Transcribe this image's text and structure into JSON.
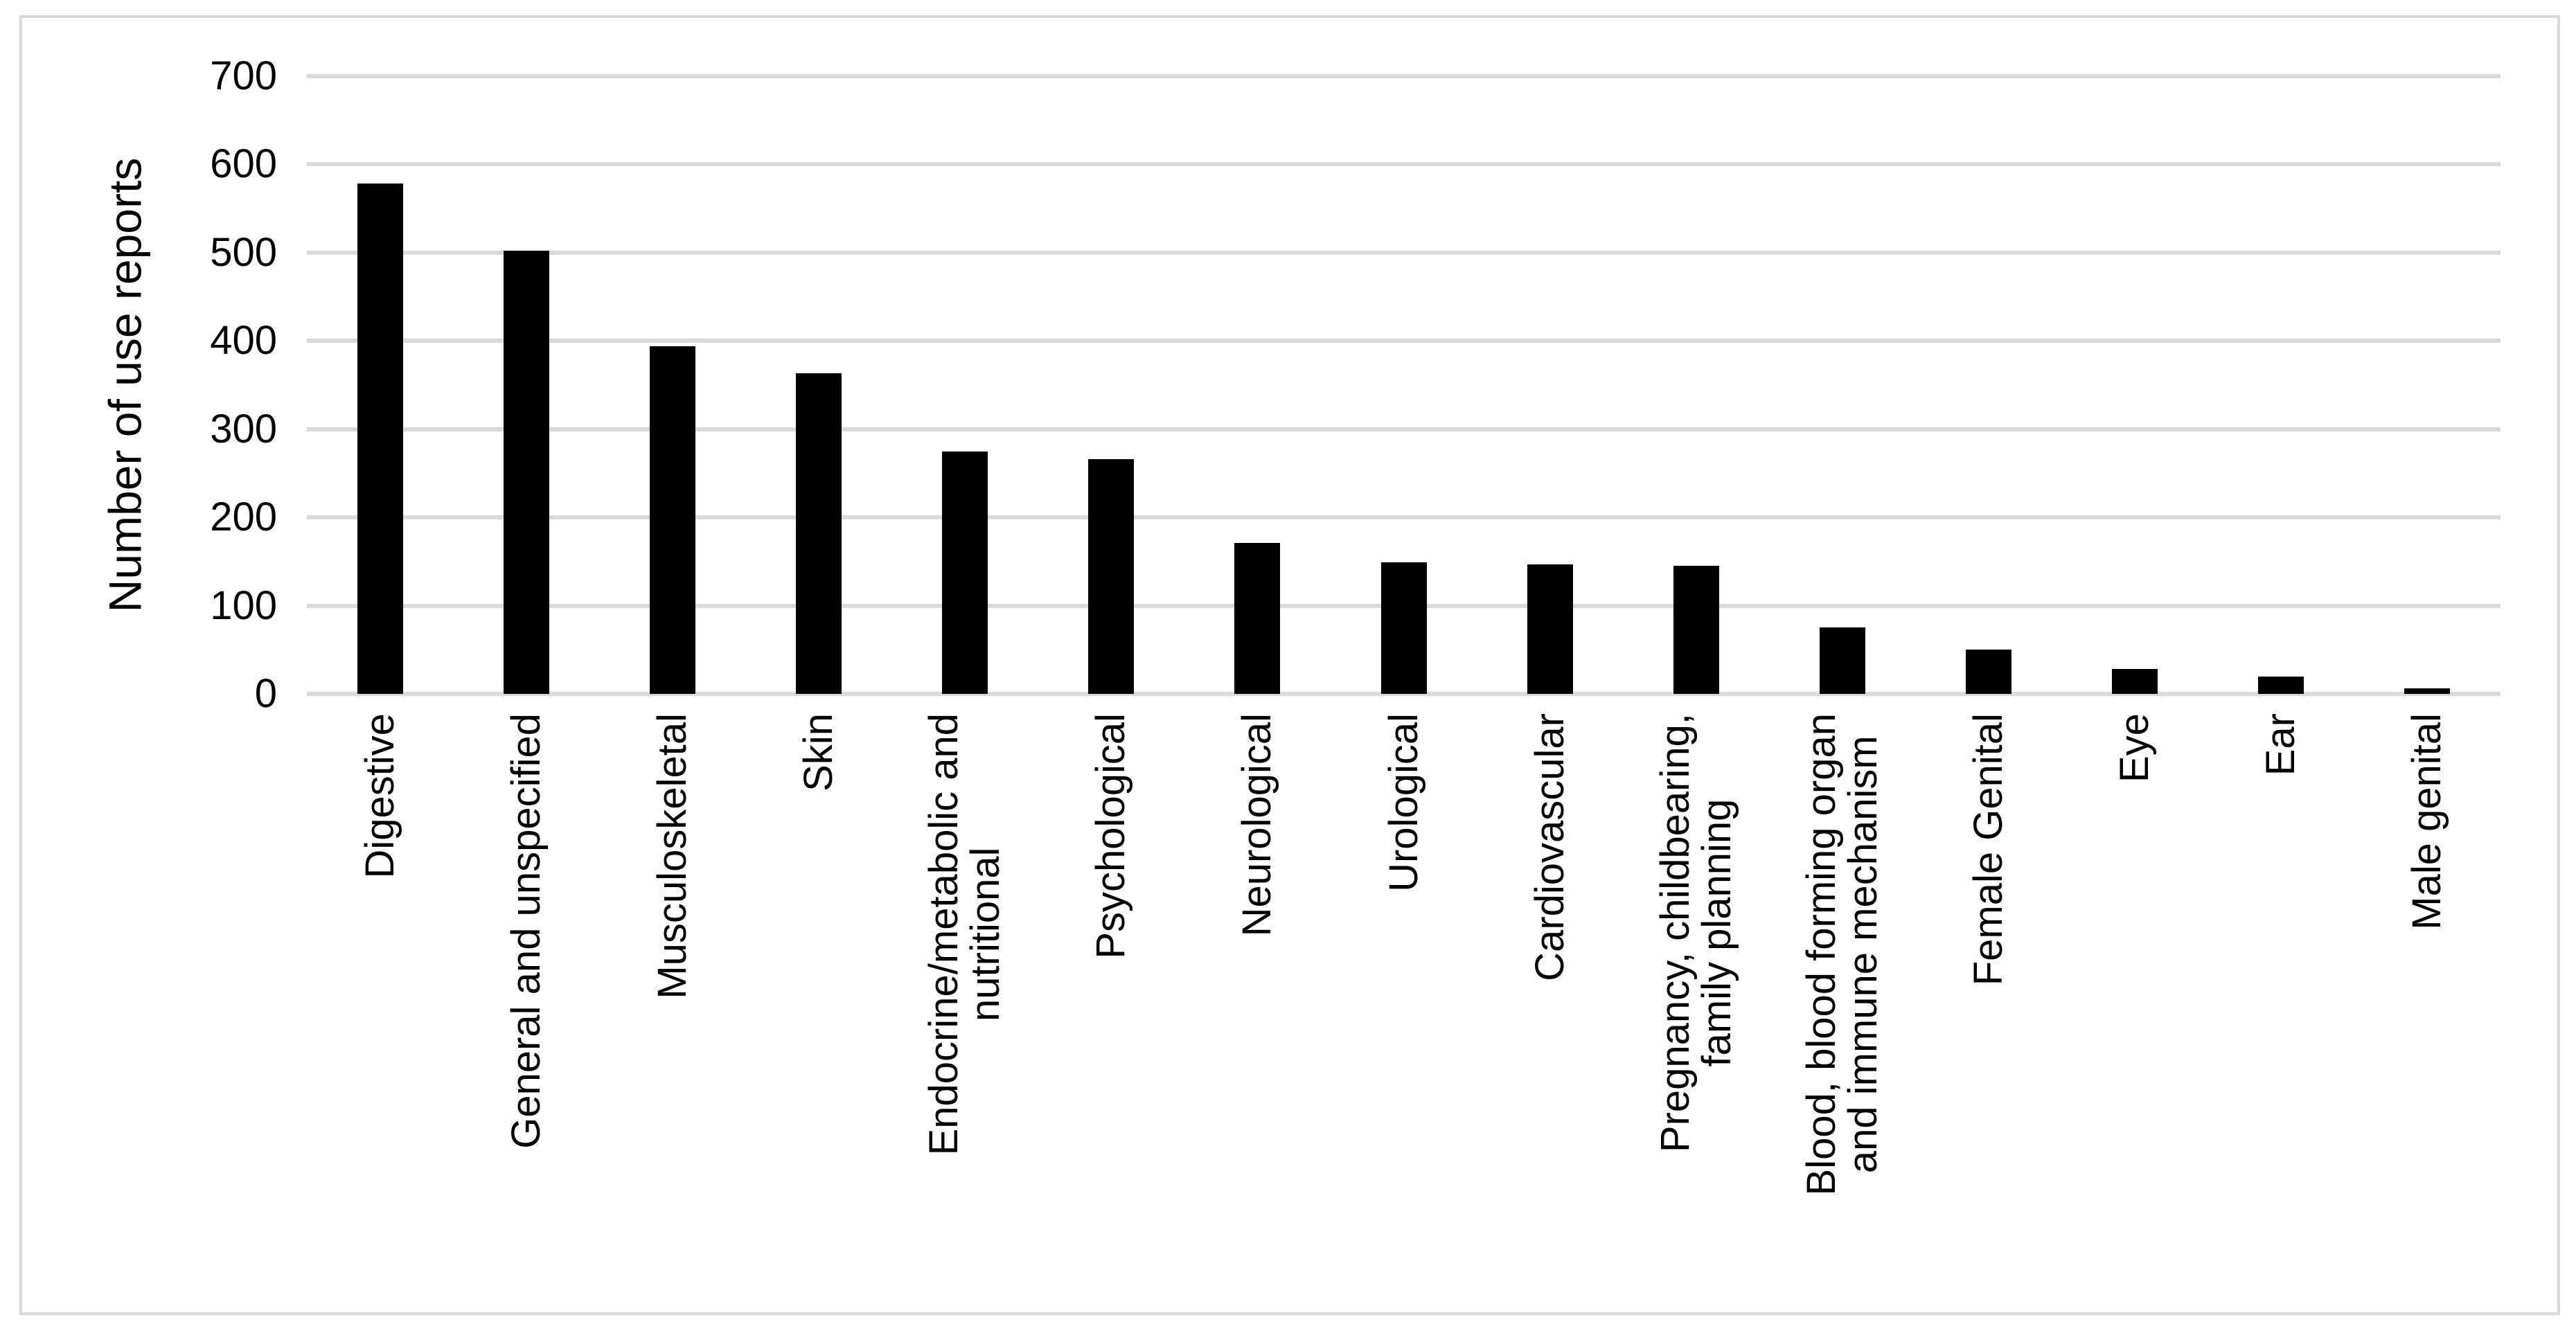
{
  "chart_data": {
    "type": "bar",
    "title": "",
    "xlabel": "",
    "ylabel": "Number of use reports",
    "categories": [
      "Digestive",
      "General and unspecified",
      "Musculoskeletal",
      "Skin",
      "Endocrine/metabolic and\nnutritional",
      "Psychological",
      "Neurological",
      "Urological",
      "Cardiovascular",
      "Pregnancy, childbearing,\nfamily planning",
      "Blood, blood forming organ\nand immune mechanism",
      "Female Genital",
      "Eye",
      "Ear",
      "Male genital"
    ],
    "values": [
      578,
      502,
      394,
      363,
      275,
      266,
      171,
      149,
      147,
      145,
      75,
      50,
      28,
      20,
      6
    ],
    "yticks": [
      0,
      100,
      200,
      300,
      400,
      500,
      600,
      700
    ],
    "ylim": [
      0,
      700
    ],
    "grid": "horizontal",
    "legend": "none",
    "bar_orientation": "vertical",
    "x_label_rotation_deg": 90,
    "colors": {
      "bar": "#000000",
      "gridline": "#D9D9D9",
      "frame_border": "#D9D9D9",
      "text": "#000000",
      "background": "#FFFFFF"
    }
  }
}
